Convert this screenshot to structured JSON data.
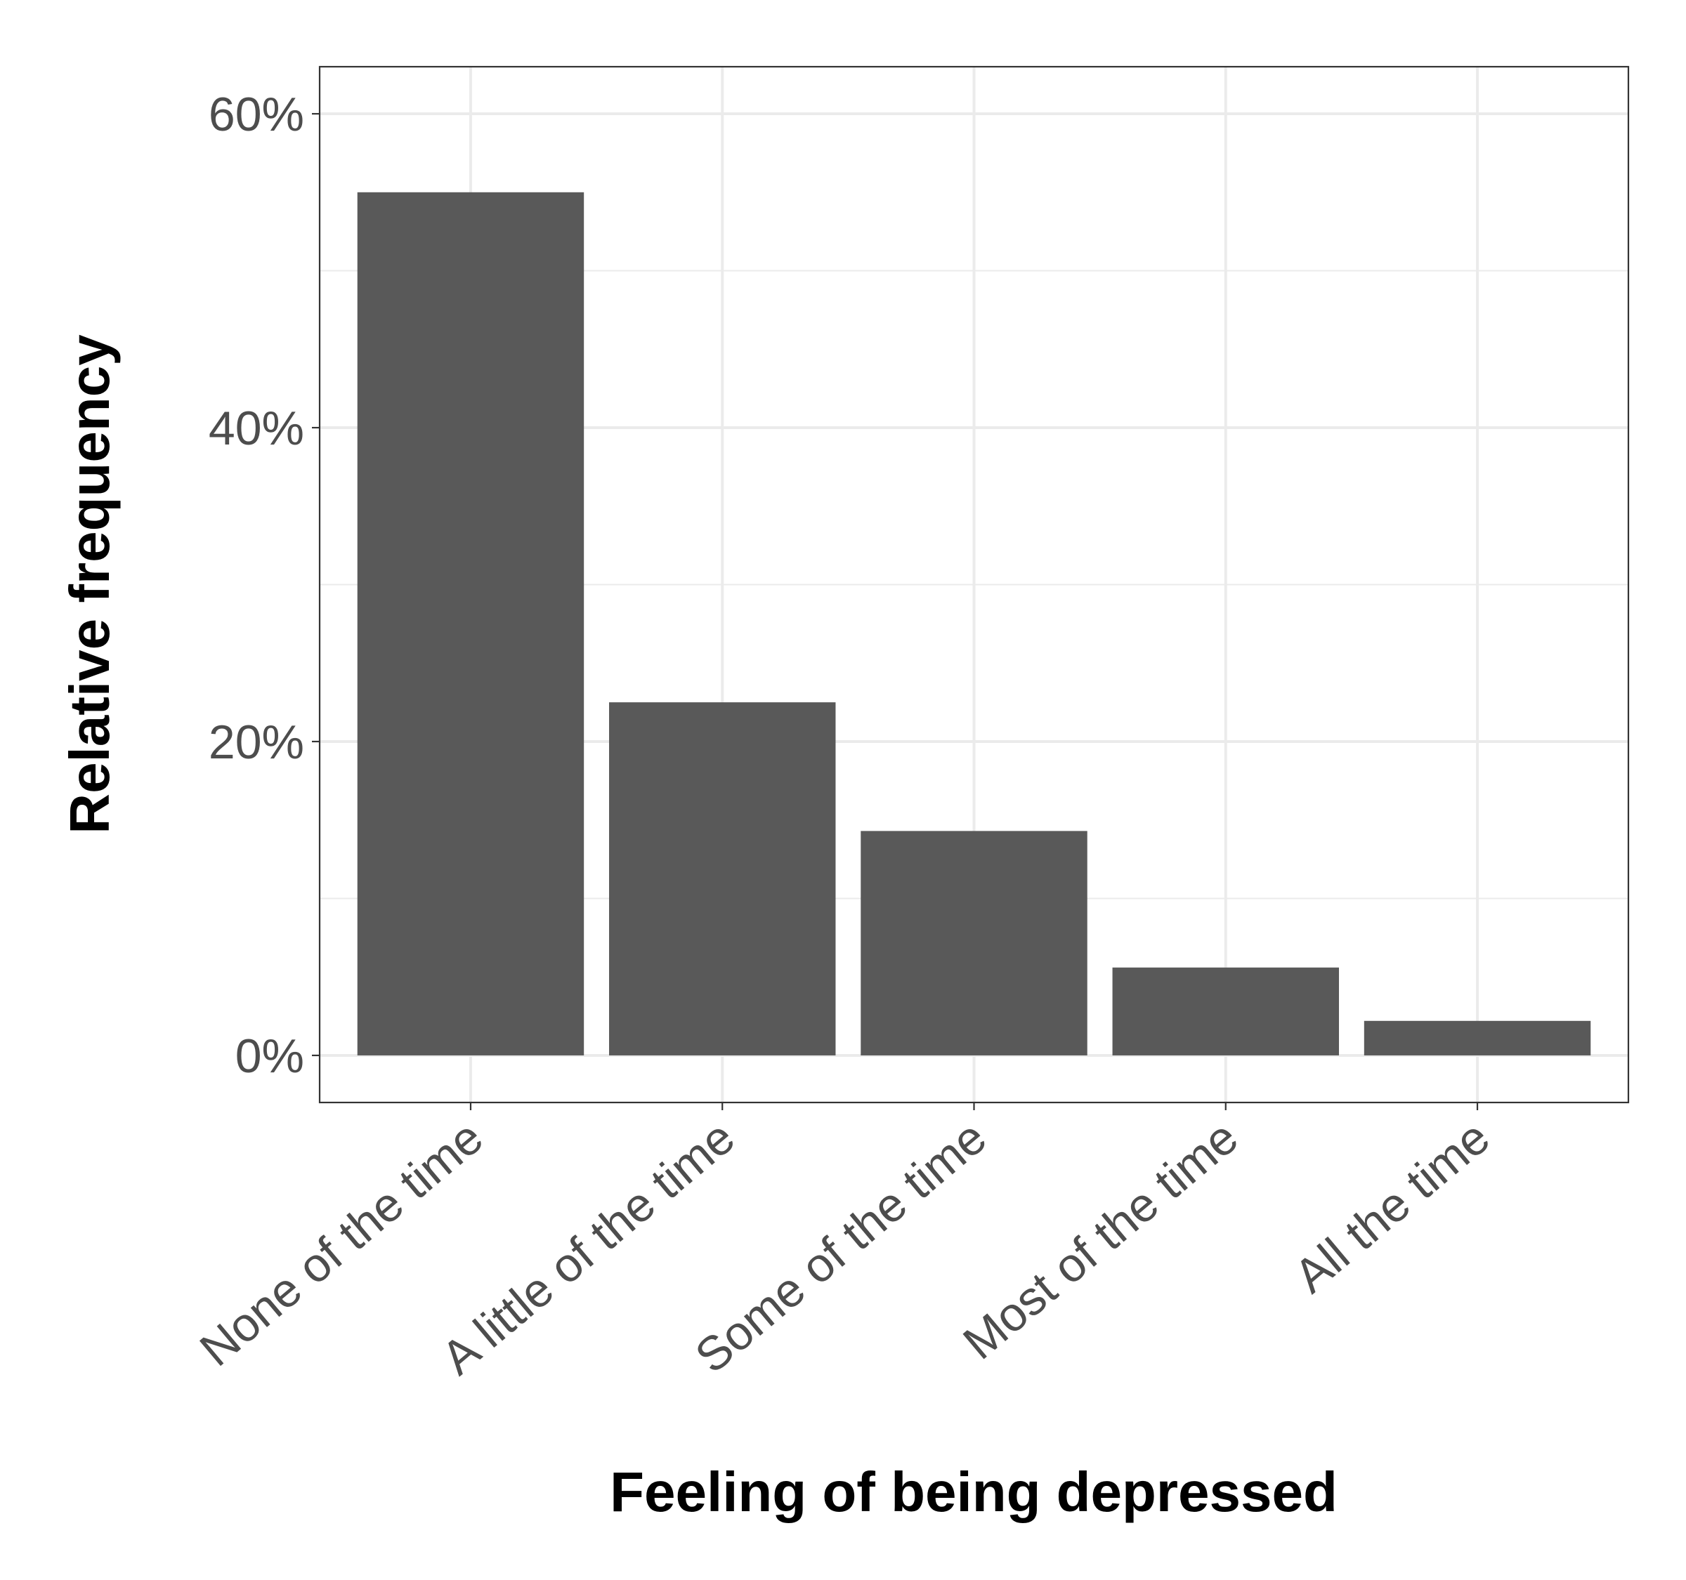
{
  "chart_data": {
    "type": "bar",
    "xlabel": "Feeling of being depressed",
    "ylabel": "Relative frequency",
    "categories": [
      "None of the time",
      "A little of the time",
      "Some of the time",
      "Most of the time",
      "All the time"
    ],
    "values": [
      0.55,
      0.225,
      0.143,
      0.056,
      0.022
    ],
    "ylim": [
      -0.03,
      0.63
    ],
    "y_ticks": [
      0,
      0.2,
      0.4,
      0.6
    ],
    "y_tick_labels": [
      "0%",
      "20%",
      "40%",
      "60%"
    ],
    "y_minor_ticks": [
      0.1,
      0.3,
      0.5
    ],
    "grid": true,
    "bar_color": "#595959",
    "grid_color": "#ebebeb",
    "panel_border_color": "#333333",
    "tick_label_color": "#4d4d4d",
    "axis_title_color": "#000000"
  }
}
